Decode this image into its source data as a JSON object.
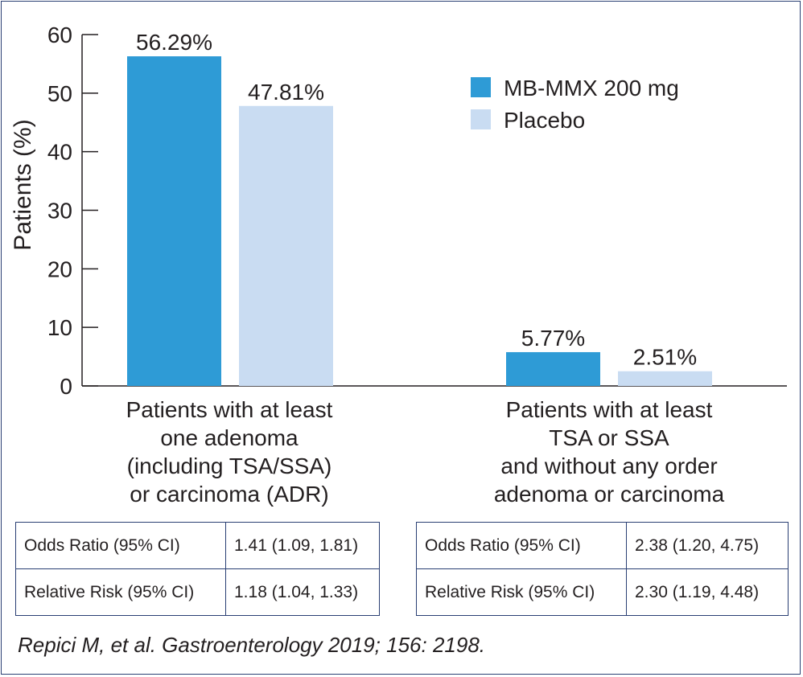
{
  "chart_data": {
    "type": "bar",
    "ylabel": "Patients (%)",
    "ylim": [
      0,
      60
    ],
    "yticks": [
      0,
      10,
      20,
      30,
      40,
      50,
      60
    ],
    "categories": [
      [
        "Patients with at least",
        "one adenoma",
        "(including TSA/SSA)",
        "or carcinoma (ADR)"
      ],
      [
        "Patients with at least",
        "TSA or SSA",
        "and without any order",
        "adenoma or carcinoma"
      ]
    ],
    "series": [
      {
        "name": "MB-MMX 200 mg",
        "values": [
          56.29,
          5.77
        ],
        "labels": [
          "56.29%",
          "5.77%"
        ],
        "color": "#2e9bd6"
      },
      {
        "name": "Placebo",
        "values": [
          47.81,
          2.51
        ],
        "labels": [
          "47.81%",
          "2.51%"
        ],
        "color": "#c9dcf2"
      }
    ],
    "legend_position": "top-right",
    "grid": false
  },
  "tables": [
    {
      "rows": [
        [
          "Odds Ratio (95% CI)",
          "1.41 (1.09, 1.81)"
        ],
        [
          "Relative Risk (95% CI)",
          "1.18 (1.04, 1.33)"
        ]
      ]
    },
    {
      "rows": [
        [
          "Odds Ratio (95% CI)",
          "2.38 (1.20, 4.75)"
        ],
        [
          "Relative Risk (95% CI)",
          "2.30 (1.19, 4.48)"
        ]
      ]
    }
  ],
  "source": "Repici M, et al. Gastroenterology 2019; 156: 2198.",
  "colors": {
    "frame": "#2a3f73",
    "text": "#231f20"
  }
}
